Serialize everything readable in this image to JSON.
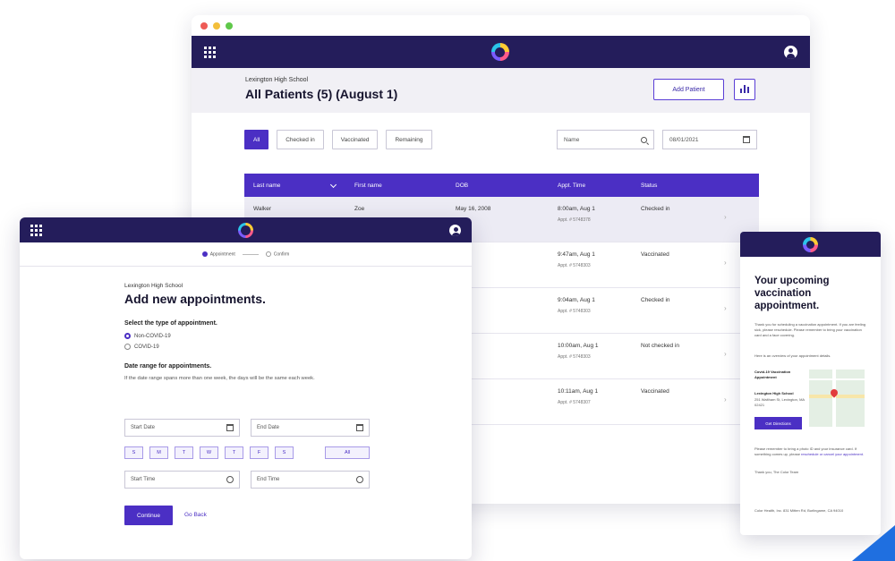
{
  "dashboard": {
    "school": "Lexington High School",
    "title": "All Patients (5) (August 1)",
    "add_patient": "Add Patient",
    "filters": [
      "All",
      "Checked in",
      "Vaccinated",
      "Remaining"
    ],
    "search_value": "Name",
    "date_value": "08/01/2021",
    "columns": [
      "Last name",
      "First name",
      "DOB",
      "Appt. Time",
      "Status"
    ],
    "rows": [
      {
        "last": "Walker",
        "first": "Zoe",
        "dob": "May 16, 2008",
        "time": "8:00am, Aug 1",
        "appt": "Appt. # 5748378",
        "status": "Checked in"
      },
      {
        "last": "",
        "first": "",
        "dob": "",
        "time": "9:47am, Aug 1",
        "appt": "Appt. # 5748303",
        "status": "Vaccinated"
      },
      {
        "last": "",
        "first": "",
        "dob": "",
        "time": "9:04am, Aug 1",
        "appt": "Appt. # 5748303",
        "status": "Checked in"
      },
      {
        "last": "",
        "first": "",
        "dob": "",
        "time": "10:00am, Aug 1",
        "appt": "Appt. # 5748303",
        "status": "Not checked in"
      },
      {
        "last": "",
        "first": "",
        "dob": "",
        "time": "10:11am, Aug 1",
        "appt": "Appt. # 5748307",
        "status": "Vaccinated"
      }
    ]
  },
  "scheduler": {
    "steps": [
      "Appointment",
      "Confirm"
    ],
    "school": "Lexington High School",
    "title": "Add new appointments.",
    "type_heading": "Select the type of appointment.",
    "type_options": [
      "Non-COVID-19",
      "COVID-19"
    ],
    "range_heading": "Date range for appointments.",
    "range_help": "If the date range spans more than one week, the days will be the same each week.",
    "start_date": "Start Date",
    "end_date": "End Date",
    "days": [
      "S",
      "M",
      "T",
      "W",
      "T",
      "F",
      "S"
    ],
    "all_label": "All",
    "start_time": "Start Time",
    "end_time": "End Time",
    "continue_label": "Continue",
    "back_label": "Go Back"
  },
  "email": {
    "title": "Your upcoming vaccination appointment.",
    "intro": "Thank you for scheduling a vaccination appointment. If you are feeling sick, please reschedule. Please remember to bring your vaccination card and a face covering.",
    "details_heading": "Here is an overview of your appointment details.",
    "detail_label": "Covid-19 Vaccination Appointment",
    "location": "Lexington High School",
    "address": "251 Waltham St, Lexington, MA 02421",
    "button": "Get Directions",
    "contact_text": "Please remember to bring a photo ID and your insurance card. If something comes up, please",
    "contact_link": "reschedule or cancel your appointment.",
    "signoff": "Thank you, The Color Team",
    "footer": "Color Health, Inc. 831 Mitten Rd, Burlingame, CA 94010"
  }
}
